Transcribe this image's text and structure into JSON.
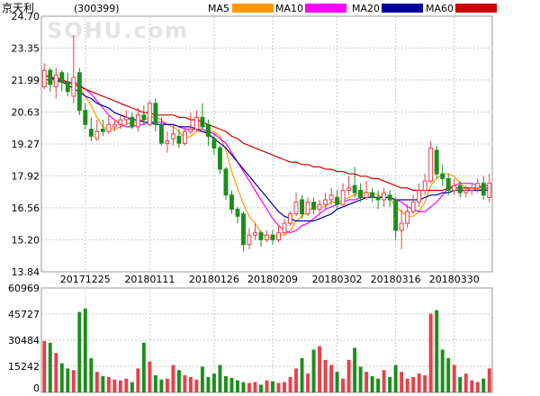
{
  "header": {
    "name": "京天利",
    "code": "(300399)",
    "watermark": "SOHU.com",
    "legend": [
      {
        "label": "MA5",
        "color": "#ff9900"
      },
      {
        "label": "MA10",
        "color": "#ff00ff"
      },
      {
        "label": "MA20",
        "color": "#000099"
      },
      {
        "label": "MA60",
        "color": "#cc0000"
      }
    ]
  },
  "colors": {
    "up": "#e8404a",
    "down": "#1a8f1a",
    "grid": "#c8c8c8",
    "frame": "#9a9a9a",
    "text": "#000000"
  },
  "chart_data": [
    {
      "type": "candlestick",
      "price_ticks": [
        "24.70",
        "23.35",
        "21.99",
        "20.63",
        "19.27",
        "17.92",
        "16.56",
        "15.20",
        "13.84"
      ],
      "ylim": [
        13.84,
        24.7
      ],
      "date_labels": [
        {
          "label": "20171225",
          "index": 7
        },
        {
          "label": "20180111",
          "index": 18
        },
        {
          "label": "20180126",
          "index": 29
        },
        {
          "label": "20180209",
          "index": 39
        },
        {
          "label": "20180302",
          "index": 50
        },
        {
          "label": "20180316",
          "index": 60
        },
        {
          "label": "20180330",
          "index": 70
        }
      ],
      "candles": [
        [
          21.7,
          22.4,
          22.7,
          21.6
        ],
        [
          22.4,
          21.8,
          22.5,
          21.5
        ],
        [
          21.7,
          22.2,
          22.5,
          21.2
        ],
        [
          22.3,
          21.9,
          22.4,
          21.5
        ],
        [
          21.9,
          21.5,
          22.3,
          21.3
        ],
        [
          21.3,
          22.1,
          23.9,
          21.0
        ],
        [
          22.3,
          20.7,
          22.5,
          20.5
        ],
        [
          20.7,
          20.1,
          21.0,
          19.9
        ],
        [
          19.9,
          19.6,
          20.4,
          19.4
        ],
        [
          19.5,
          19.8,
          20.3,
          19.4
        ],
        [
          19.9,
          19.8,
          20.3,
          19.6
        ],
        [
          19.8,
          20.1,
          20.5,
          19.7
        ],
        [
          20.0,
          20.1,
          20.3,
          19.8
        ],
        [
          20.1,
          20.3,
          20.5,
          19.9
        ],
        [
          20.3,
          20.4,
          20.7,
          20.1
        ],
        [
          20.4,
          20.0,
          20.6,
          19.9
        ],
        [
          20.0,
          20.5,
          20.8,
          19.8
        ],
        [
          20.5,
          20.3,
          20.9,
          20.1
        ],
        [
          20.1,
          21.0,
          21.1,
          20.0
        ],
        [
          21.0,
          20.1,
          21.2,
          19.8
        ],
        [
          20.1,
          19.3,
          20.4,
          19.2
        ],
        [
          19.3,
          19.4,
          19.8,
          18.9
        ],
        [
          19.5,
          19.7,
          20.1,
          19.2
        ],
        [
          19.6,
          19.3,
          19.9,
          19.1
        ],
        [
          19.3,
          19.8,
          20.0,
          19.2
        ],
        [
          19.8,
          19.9,
          20.6,
          19.7
        ],
        [
          19.9,
          20.4,
          20.7,
          19.8
        ],
        [
          20.4,
          20.0,
          21.0,
          19.9
        ],
        [
          20.1,
          19.6,
          20.3,
          19.2
        ],
        [
          19.5,
          19.1,
          19.7,
          18.8
        ],
        [
          19.1,
          18.2,
          19.2,
          18.0
        ],
        [
          18.2,
          17.1,
          18.3,
          16.9
        ],
        [
          17.1,
          16.5,
          17.3,
          16.3
        ],
        [
          16.5,
          16.2,
          16.6,
          15.9
        ],
        [
          16.3,
          15.0,
          16.4,
          14.7
        ],
        [
          15.0,
          15.4,
          15.7,
          14.8
        ],
        [
          15.4,
          15.5,
          15.9,
          15.2
        ],
        [
          15.5,
          15.2,
          15.6,
          14.9
        ],
        [
          15.2,
          15.4,
          15.6,
          15.1
        ],
        [
          15.4,
          15.2,
          15.6,
          15.0
        ],
        [
          15.2,
          15.5,
          15.8,
          15.1
        ],
        [
          15.5,
          15.9,
          16.1,
          15.4
        ],
        [
          15.9,
          16.3,
          16.4,
          15.8
        ],
        [
          16.3,
          16.8,
          17.2,
          16.2
        ],
        [
          16.9,
          16.3,
          17.1,
          16.1
        ],
        [
          16.3,
          16.8,
          17.0,
          16.2
        ],
        [
          16.8,
          16.5,
          17.0,
          16.3
        ],
        [
          16.5,
          16.7,
          16.9,
          16.3
        ],
        [
          16.7,
          16.9,
          17.2,
          16.5
        ],
        [
          16.9,
          17.1,
          17.4,
          16.7
        ],
        [
          17.0,
          16.7,
          17.3,
          16.5
        ],
        [
          16.7,
          17.3,
          17.6,
          16.6
        ],
        [
          17.3,
          17.4,
          17.9,
          17.1
        ],
        [
          17.5,
          17.2,
          18.3,
          17.0
        ],
        [
          17.3,
          17.0,
          17.6,
          16.8
        ],
        [
          17.0,
          17.2,
          17.7,
          16.9
        ],
        [
          17.2,
          17.0,
          17.4,
          16.8
        ],
        [
          17.0,
          16.9,
          17.3,
          16.5
        ],
        [
          16.9,
          17.2,
          17.4,
          16.6
        ],
        [
          17.1,
          16.9,
          17.3,
          16.6
        ],
        [
          16.9,
          15.6,
          17.0,
          15.2
        ],
        [
          15.6,
          15.9,
          16.5,
          14.8
        ],
        [
          15.9,
          16.4,
          16.7,
          15.7
        ],
        [
          16.4,
          16.8,
          17.1,
          16.3
        ],
        [
          16.8,
          17.3,
          17.6,
          16.6
        ],
        [
          17.3,
          17.7,
          18.0,
          17.1
        ],
        [
          17.7,
          19.1,
          19.4,
          17.6
        ],
        [
          19.0,
          18.0,
          19.2,
          17.8
        ],
        [
          18.0,
          17.8,
          18.4,
          17.5
        ],
        [
          17.8,
          17.3,
          18.0,
          17.1
        ],
        [
          17.3,
          17.5,
          17.8,
          17.1
        ],
        [
          17.5,
          17.2,
          17.7,
          17.0
        ],
        [
          17.2,
          17.3,
          17.5,
          17.0
        ],
        [
          17.3,
          17.4,
          17.6,
          17.1
        ],
        [
          17.4,
          17.6,
          17.8,
          17.2
        ],
        [
          17.6,
          17.1,
          17.9,
          16.9
        ],
        [
          17.0,
          17.6,
          18.0,
          16.8
        ]
      ],
      "volume_ticks": [
        "60969",
        "45727",
        "30484",
        "15242",
        "0"
      ],
      "volume_ylim": [
        0,
        60969
      ],
      "volumes": [
        30000,
        29000,
        23000,
        17000,
        14000,
        13000,
        47000,
        49000,
        20000,
        12000,
        9500,
        9000,
        7500,
        7000,
        8000,
        6000,
        14000,
        29000,
        18000,
        10000,
        7500,
        8000,
        16000,
        13000,
        10000,
        9000,
        7500,
        15000,
        9000,
        11000,
        16000,
        9500,
        8500,
        7000,
        6000,
        5500,
        6000,
        4500,
        7000,
        6500,
        5500,
        6000,
        9000,
        14000,
        20000,
        11000,
        25000,
        27000,
        19000,
        16000,
        12000,
        8000,
        19000,
        26000,
        15000,
        12000,
        9500,
        8000,
        13000,
        9000,
        16000,
        12000,
        8000,
        9000,
        11000,
        10000,
        46000,
        48000,
        25000,
        20000,
        16000,
        9000,
        11000,
        7000,
        6000,
        8000,
        14000
      ],
      "moving_averages": [
        {
          "name": "MA5",
          "values": [
            21.8,
            21.9,
            21.9,
            21.9,
            21.9,
            21.9,
            21.7,
            21.3,
            20.9,
            20.4,
            20.0,
            19.9,
            19.9,
            20.0,
            20.1,
            20.2,
            20.2,
            20.3,
            20.4,
            20.4,
            20.3,
            20.1,
            20.0,
            19.8,
            19.5,
            19.6,
            19.8,
            19.8,
            19.8,
            19.8,
            19.6,
            19.0,
            18.1,
            17.4,
            16.7,
            16.2,
            15.9,
            15.5,
            15.3,
            15.3,
            15.4,
            15.4,
            15.6,
            16.0,
            16.2,
            16.4,
            16.6,
            16.6,
            16.6,
            16.8,
            16.8,
            16.9,
            17.0,
            17.1,
            17.2,
            17.2,
            17.2,
            17.1,
            17.0,
            17.0,
            16.6,
            16.4,
            16.2,
            16.2,
            16.4,
            16.8,
            17.5,
            17.8,
            18.0,
            18.0,
            17.9,
            17.6,
            17.4,
            17.3,
            17.4,
            17.3,
            17.4
          ]
        },
        {
          "name": "MA10",
          "values": [
            22.0,
            22.0,
            22.0,
            22.0,
            21.9,
            21.9,
            21.8,
            21.6,
            21.4,
            21.1,
            20.8,
            20.5,
            20.3,
            20.1,
            20.0,
            20.0,
            20.1,
            20.1,
            20.2,
            20.2,
            20.2,
            20.1,
            20.1,
            20.0,
            19.9,
            19.9,
            19.9,
            19.9,
            19.8,
            19.7,
            19.5,
            19.3,
            18.9,
            18.5,
            18.1,
            17.7,
            17.3,
            16.9,
            16.5,
            16.1,
            15.8,
            15.6,
            15.5,
            15.6,
            15.8,
            15.9,
            16.1,
            16.3,
            16.5,
            16.6,
            16.7,
            16.8,
            16.9,
            16.9,
            17.0,
            17.0,
            17.0,
            17.0,
            17.0,
            17.0,
            16.9,
            16.8,
            16.6,
            16.5,
            16.4,
            16.4,
            16.6,
            16.8,
            17.1,
            17.4,
            17.5,
            17.6,
            17.6,
            17.6,
            17.5,
            17.4,
            17.4
          ]
        },
        {
          "name": "MA20",
          "values": [
            22.2,
            22.1,
            22.0,
            21.9,
            21.8,
            21.6,
            21.5,
            21.3,
            21.2,
            21.0,
            20.9,
            20.8,
            20.6,
            20.5,
            20.4,
            20.3,
            20.3,
            20.2,
            20.2,
            20.1,
            20.1,
            20.1,
            20.1,
            20.0,
            20.0,
            20.0,
            19.9,
            19.8,
            19.7,
            19.5,
            19.3,
            19.1,
            18.8,
            18.5,
            18.2,
            17.9,
            17.6,
            17.3,
            17.0,
            16.7,
            16.4,
            16.2,
            16.1,
            16.0,
            16.0,
            16.0,
            16.0,
            16.1,
            16.2,
            16.3,
            16.5,
            16.6,
            16.7,
            16.8,
            16.9,
            17.0,
            17.0,
            17.0,
            17.0,
            17.0,
            16.9,
            16.9,
            16.9,
            16.9,
            16.9,
            17.0,
            17.1,
            17.1,
            17.2,
            17.2,
            17.3,
            17.3,
            17.3,
            17.3,
            17.3,
            17.3,
            17.3
          ]
        },
        {
          "name": "MA60",
          "values": [
            22.2,
            22.1,
            22.1,
            22.0,
            21.9,
            21.8,
            21.7,
            21.6,
            21.5,
            21.4,
            21.3,
            21.2,
            21.1,
            21.0,
            20.9,
            20.8,
            20.7,
            20.6,
            20.6,
            20.5,
            20.5,
            20.5,
            20.5,
            20.4,
            20.4,
            20.3,
            20.3,
            20.2,
            20.1,
            20.0,
            19.9,
            19.8,
            19.6,
            19.5,
            19.3,
            19.2,
            19.1,
            19.0,
            18.9,
            18.8,
            18.7,
            18.6,
            18.5,
            18.5,
            18.4,
            18.4,
            18.3,
            18.3,
            18.2,
            18.2,
            18.1,
            18.1,
            18.0,
            18.0,
            17.9,
            17.9,
            17.8,
            17.8,
            17.7,
            17.6,
            17.5,
            17.4,
            17.4,
            17.3,
            17.3,
            17.3,
            17.3,
            17.3,
            17.3,
            17.4,
            17.4,
            17.4,
            17.4,
            17.4,
            17.4,
            17.5,
            17.5
          ]
        }
      ]
    }
  ]
}
